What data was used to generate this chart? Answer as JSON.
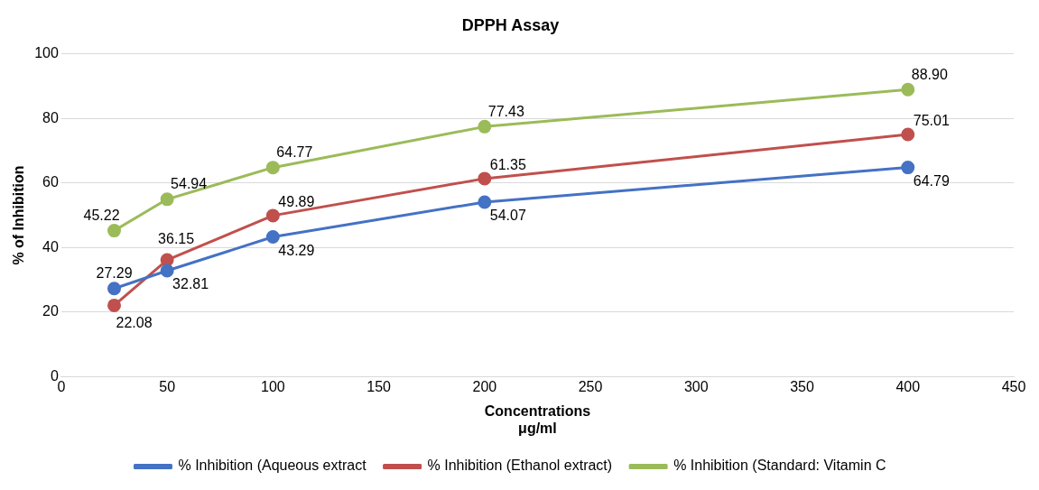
{
  "chart_data": {
    "type": "line",
    "title": "DPPH Assay",
    "xlabel": "Concentrations\nμg/ml",
    "ylabel": "% of Inhibition",
    "x": [
      25,
      50,
      100,
      200,
      400
    ],
    "series": [
      {
        "name": "% Inhibition (Aqueous extract",
        "color": "#4472c4",
        "values": [
          27.29,
          32.81,
          43.29,
          54.07,
          64.79
        ],
        "value_labels": [
          "27.29",
          "32.81",
          "43.29",
          "54.07",
          "64.79"
        ]
      },
      {
        "name": "% Inhibition (Ethanol extract)",
        "color": "#c0504d",
        "values": [
          22.08,
          36.15,
          49.89,
          61.35,
          75.01
        ],
        "value_labels": [
          "22.08",
          "36.15",
          "49.89",
          "61.35",
          "75.01"
        ]
      },
      {
        "name": "% Inhibition (Standard: Vitamin C",
        "color": "#9bbb59",
        "values": [
          45.22,
          54.94,
          64.77,
          77.43,
          88.9
        ],
        "value_labels": [
          "45.22",
          "54.94",
          "64.77",
          "77.43",
          "88.90"
        ]
      }
    ],
    "xlim": [
      0,
      450
    ],
    "xticks": [
      0,
      50,
      100,
      150,
      200,
      250,
      300,
      350,
      400,
      450
    ],
    "ylim": [
      0,
      100
    ],
    "yticks": [
      0,
      20,
      40,
      60,
      80,
      100
    ],
    "grid": "y",
    "legend": "bottom",
    "marker": "circle",
    "line_style": "solid"
  }
}
